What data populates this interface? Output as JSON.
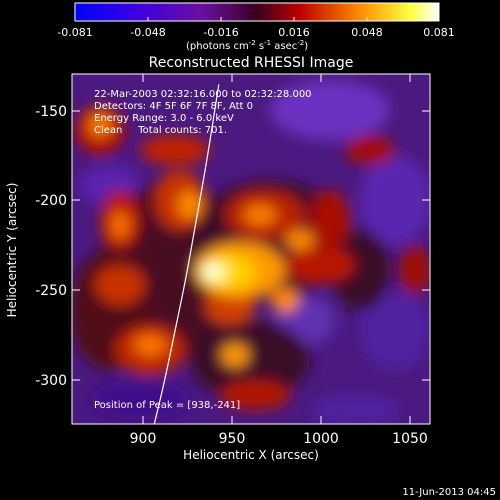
{
  "colorbar": {
    "tick_labels": [
      "-0.081",
      "-0.048",
      "-0.016",
      "0.016",
      "0.048",
      "0.081"
    ],
    "unit_label": "(photons cm",
    "unit_sup1": "-2",
    "unit_mid": " s",
    "unit_sup2": "-1",
    "unit_end": " asec",
    "unit_sup3": "-2",
    "unit_close": ")",
    "range": [
      -0.081,
      0.081
    ]
  },
  "plot": {
    "title": "Reconstructed RHESSI Image",
    "xlabel": "Heliocentric X (arcsec)",
    "ylabel": "Heliocentric Y (arcsec)",
    "xticks": [
      "900",
      "950",
      "1000",
      "1050"
    ],
    "yticks": [
      "-150",
      "-200",
      "-250",
      "-300"
    ],
    "xlim": [
      864,
      1064
    ],
    "ylim": [
      -326,
      -124
    ]
  },
  "info": {
    "line1": "22-Mar-2003 02:32:16.000 to 02:32:28.000",
    "line2": "Detectors: 4F 5F 6F 7F 8F, Att 0",
    "line3": "Energy Range: 3.0 - 6.0 keV",
    "line4": "Clean     Total counts: 701.",
    "peak": "Position of Peak = [938,-241]"
  },
  "footer": {
    "timestamp": "11-Jun-2013 04:45"
  },
  "chart_data": {
    "type": "heatmap",
    "title": "Reconstructed RHESSI Image",
    "xlabel": "Heliocentric X (arcsec)",
    "ylabel": "Heliocentric Y (arcsec)",
    "xlim": [
      864,
      1064
    ],
    "ylim": [
      -326,
      -124
    ],
    "colorbar_range": [
      -0.081,
      0.081
    ],
    "peak": [
      938,
      -241
    ],
    "limb_curve": {
      "x": [
        910,
        916,
        922,
        928,
        934,
        940,
        946
      ],
      "y": [
        -326,
        -300,
        -270,
        -240,
        -205,
        -170,
        -130
      ]
    },
    "color_stops": [
      "#0000ff",
      "#7800c8",
      "#500050",
      "#b40000",
      "#ff8000",
      "#ffff00",
      "#ffffff"
    ]
  }
}
